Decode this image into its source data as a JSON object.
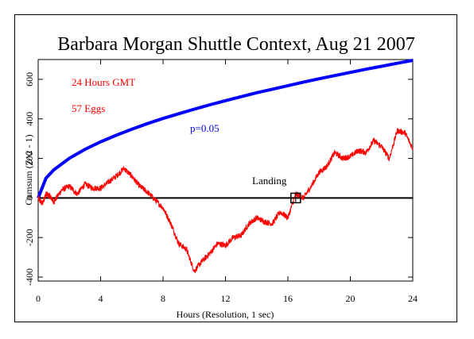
{
  "chart_data": {
    "type": "line",
    "title": "Barbara Morgan Shuttle Context, Aug 21 2007",
    "xlabel": "Hours (Resolution, 1 sec)",
    "ylabel": "Cumsum (Z^2 - 1)",
    "xlim": [
      0,
      24
    ],
    "ylim": [
      -420,
      700
    ],
    "xticks": [
      0,
      4,
      8,
      12,
      16,
      20,
      24
    ],
    "yticks": [
      -400,
      -200,
      0,
      200,
      400,
      600
    ],
    "grid": false,
    "annotations": {
      "period": "24 Hours GMT",
      "eggs": "57 Eggs",
      "envelope": "p=0.05",
      "event": "Landing"
    },
    "event_marker": {
      "x": 16.5,
      "y": 0
    },
    "colors": {
      "data": "#ff0000",
      "envelope": "#0000ff",
      "baseline": "#000000",
      "text_red": "#ff0000",
      "text_blue": "#0000ff"
    },
    "series": [
      {
        "role": "cumulative-deviation",
        "x": [
          0,
          0.25,
          0.5,
          0.75,
          1,
          1.5,
          2,
          2.5,
          3,
          3.5,
          4,
          4.5,
          5,
          5.5,
          6,
          6.5,
          7,
          7.5,
          8,
          8.5,
          9,
          9.5,
          10,
          10.5,
          11,
          11.5,
          12,
          12.5,
          13,
          13.5,
          14,
          14.5,
          15,
          15.5,
          16,
          16.5,
          17,
          17.5,
          18,
          18.5,
          19,
          19.5,
          20,
          20.5,
          21,
          21.5,
          22,
          22.5,
          23,
          23.5,
          24
        ],
        "y": [
          0,
          -30,
          20,
          10,
          -20,
          40,
          60,
          20,
          70,
          50,
          50,
          80,
          110,
          150,
          110,
          60,
          30,
          -10,
          -50,
          -130,
          -230,
          -260,
          -370,
          -320,
          -280,
          -230,
          -240,
          -200,
          -190,
          -130,
          -100,
          -120,
          -130,
          -70,
          -100,
          20,
          0,
          60,
          130,
          160,
          230,
          200,
          210,
          240,
          230,
          290,
          260,
          200,
          340,
          330,
          250
        ]
      },
      {
        "role": "envelope",
        "x": [
          0,
          0.5,
          1,
          2,
          3,
          4,
          5,
          6,
          7,
          8,
          9,
          10,
          11,
          12,
          13,
          14,
          15,
          16,
          17,
          18,
          19,
          20,
          21,
          22,
          23,
          24
        ],
        "y": [
          0,
          100,
          142,
          201,
          246,
          284,
          317,
          348,
          376,
          402,
          426,
          449,
          471,
          492,
          512,
          532,
          550,
          568,
          586,
          603,
          619,
          635,
          651,
          666,
          681,
          696
        ]
      }
    ]
  }
}
